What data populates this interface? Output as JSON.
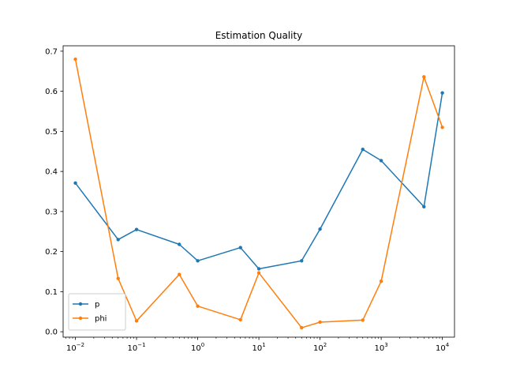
{
  "chart_data": {
    "type": "line",
    "title": "Estimation Quality",
    "xlabel": "",
    "ylabel": "",
    "x_scale": "log",
    "xlim": [
      0.0063,
      15800
    ],
    "ylim": [
      -0.0135,
      0.7135
    ],
    "x": [
      0.01,
      0.05,
      0.1,
      0.5,
      1,
      5,
      10,
      50,
      100,
      500,
      1000,
      5000,
      10000
    ],
    "x_ticks": [
      {
        "value": 0.01,
        "base": "10",
        "exp": "−2"
      },
      {
        "value": 0.1,
        "base": "10",
        "exp": "−1"
      },
      {
        "value": 1,
        "base": "10",
        "exp": "0"
      },
      {
        "value": 10,
        "base": "10",
        "exp": "1"
      },
      {
        "value": 100,
        "base": "10",
        "exp": "2"
      },
      {
        "value": 1000,
        "base": "10",
        "exp": "3"
      },
      {
        "value": 10000,
        "base": "10",
        "exp": "4"
      }
    ],
    "y_ticks": [
      "0.0",
      "0.1",
      "0.2",
      "0.3",
      "0.4",
      "0.5",
      "0.6",
      "0.7"
    ],
    "grid": false,
    "legend_position": "lower-left",
    "series": [
      {
        "name": "p",
        "color": "#1f77b4",
        "values": [
          0.371,
          0.23,
          0.255,
          0.218,
          0.177,
          0.21,
          0.157,
          0.177,
          0.256,
          0.455,
          0.427,
          0.312,
          0.596
        ]
      },
      {
        "name": "phi",
        "color": "#ff7f0e",
        "values": [
          0.68,
          0.133,
          0.027,
          0.143,
          0.064,
          0.03,
          0.147,
          0.01,
          0.024,
          0.029,
          0.126,
          0.636,
          0.51
        ]
      }
    ]
  }
}
